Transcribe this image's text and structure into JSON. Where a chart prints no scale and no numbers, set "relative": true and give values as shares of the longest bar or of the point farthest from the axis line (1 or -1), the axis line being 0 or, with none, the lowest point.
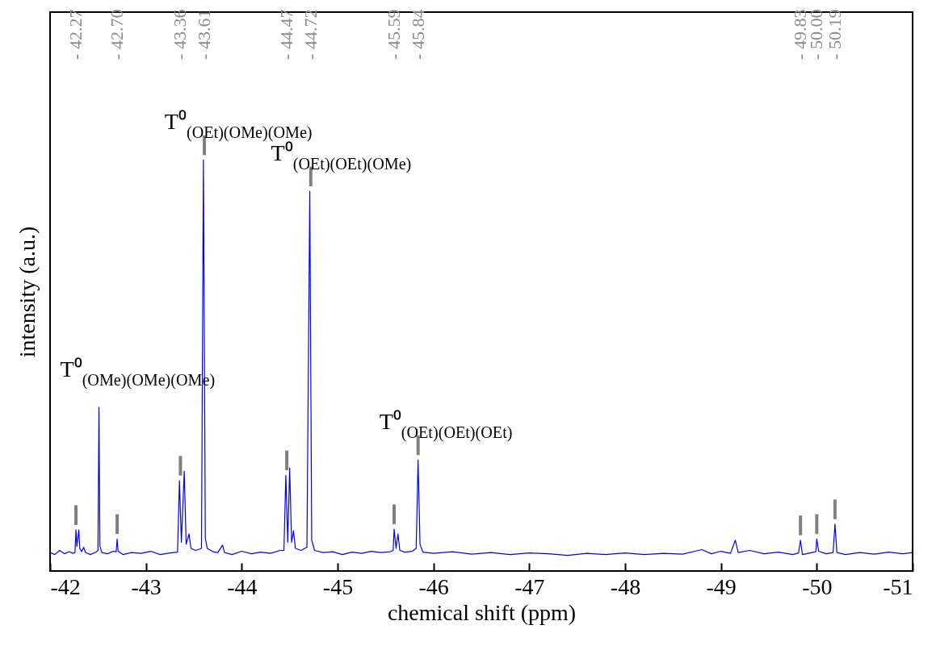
{
  "chart_data": {
    "type": "line",
    "relative": true,
    "xlabel": "chemical shift (ppm)",
    "ylabel": "intensity (a.u.)",
    "xlim": [
      -42,
      -51
    ],
    "xticks": [
      -42,
      -43,
      -44,
      -45,
      -46,
      -47,
      -48,
      -49,
      -50,
      -51
    ],
    "x": [
      -42.0,
      -42.05,
      -42.1,
      -42.15,
      -42.2,
      -42.24,
      -42.26,
      -42.27,
      -42.28,
      -42.3,
      -42.31,
      -42.33,
      -42.35,
      -42.37,
      -42.42,
      -42.48,
      -42.5,
      -42.51,
      -42.52,
      -42.54,
      -42.6,
      -42.66,
      -42.69,
      -42.7,
      -42.71,
      -42.76,
      -42.85,
      -42.95,
      -43.05,
      -43.15,
      -43.25,
      -43.33,
      -43.35,
      -43.37,
      -43.4,
      -43.42,
      -43.45,
      -43.47,
      -43.52,
      -43.58,
      -43.6,
      -43.62,
      -43.64,
      -43.7,
      -43.75,
      -43.8,
      -43.82,
      -43.9,
      -44.0,
      -44.1,
      -44.2,
      -44.3,
      -44.4,
      -44.44,
      -44.46,
      -44.48,
      -44.5,
      -44.52,
      -44.54,
      -44.56,
      -44.62,
      -44.68,
      -44.71,
      -44.73,
      -44.76,
      -44.85,
      -44.95,
      -45.05,
      -45.15,
      -45.25,
      -45.35,
      -45.45,
      -45.55,
      -45.58,
      -45.59,
      -45.61,
      -45.63,
      -45.65,
      -45.7,
      -45.78,
      -45.82,
      -45.84,
      -45.86,
      -45.89,
      -46.0,
      -46.2,
      -46.4,
      -46.6,
      -46.8,
      -47.0,
      -47.2,
      -47.4,
      -47.6,
      -47.8,
      -48.0,
      -48.2,
      -48.4,
      -48.6,
      -48.8,
      -48.9,
      -49.0,
      -49.1,
      -49.15,
      -49.18,
      -49.3,
      -49.45,
      -49.6,
      -49.75,
      -49.81,
      -49.83,
      -49.85,
      -49.95,
      -49.99,
      -50.0,
      -50.02,
      -50.1,
      -50.17,
      -50.19,
      -50.21,
      -50.3,
      -50.45,
      -50.6,
      -50.75,
      -50.9,
      -51.0
    ],
    "series": [
      {
        "color": "#0000ff",
        "values": [
          0.045,
          0.04,
          0.05,
          0.042,
          0.047,
          0.043,
          0.045,
          0.1,
          0.06,
          0.1,
          0.055,
          0.047,
          0.058,
          0.045,
          0.04,
          0.046,
          0.05,
          0.398,
          0.06,
          0.045,
          0.042,
          0.048,
          0.047,
          0.078,
          0.048,
          0.04,
          0.045,
          0.043,
          0.048,
          0.04,
          0.044,
          0.046,
          0.22,
          0.07,
          0.243,
          0.065,
          0.09,
          0.055,
          0.05,
          0.055,
          1.0,
          0.08,
          0.055,
          0.047,
          0.045,
          0.063,
          0.045,
          0.04,
          0.048,
          0.042,
          0.046,
          0.043,
          0.05,
          0.05,
          0.233,
          0.07,
          0.251,
          0.07,
          0.098,
          0.055,
          0.05,
          0.058,
          0.924,
          0.075,
          0.05,
          0.045,
          0.047,
          0.04,
          0.046,
          0.043,
          0.048,
          0.045,
          0.047,
          0.05,
          0.102,
          0.055,
          0.09,
          0.05,
          0.046,
          0.048,
          0.055,
          0.27,
          0.065,
          0.046,
          0.043,
          0.047,
          0.041,
          0.045,
          0.04,
          0.044,
          0.042,
          0.038,
          0.043,
          0.04,
          0.044,
          0.04,
          0.043,
          0.041,
          0.052,
          0.042,
          0.048,
          0.043,
          0.075,
          0.045,
          0.05,
          0.042,
          0.046,
          0.04,
          0.044,
          0.075,
          0.04,
          0.045,
          0.047,
          0.078,
          0.048,
          0.042,
          0.045,
          0.114,
          0.045,
          0.04,
          0.045,
          0.041,
          0.046,
          0.042,
          0.045
        ]
      }
    ],
    "annotations": [
      "- 42.27",
      "- 42.70",
      "- 43.36",
      "- 43.61",
      "- 44.47",
      "- 44.72",
      "- 45.59",
      "- 45.84",
      "- 49.83",
      "- 50.00",
      "- 50.19",
      {
        "text": "T⁰$_{(OMe)(OMe)(OMe)}$",
        "x": -42.51,
        "y": 0.398
      },
      {
        "text": "T⁰$_{(OEt)(OMe)(OMe)}$",
        "x": -43.6,
        "y": 1.0
      },
      {
        "text": "T⁰$_{(OEt)(OEt)(OMe)}$",
        "x": -44.71,
        "y": 0.924
      },
      {
        "text": "T⁰$_{(OEt)(OEt)(OEt)}$",
        "x": -45.84,
        "y": 0.27
      }
    ]
  }
}
